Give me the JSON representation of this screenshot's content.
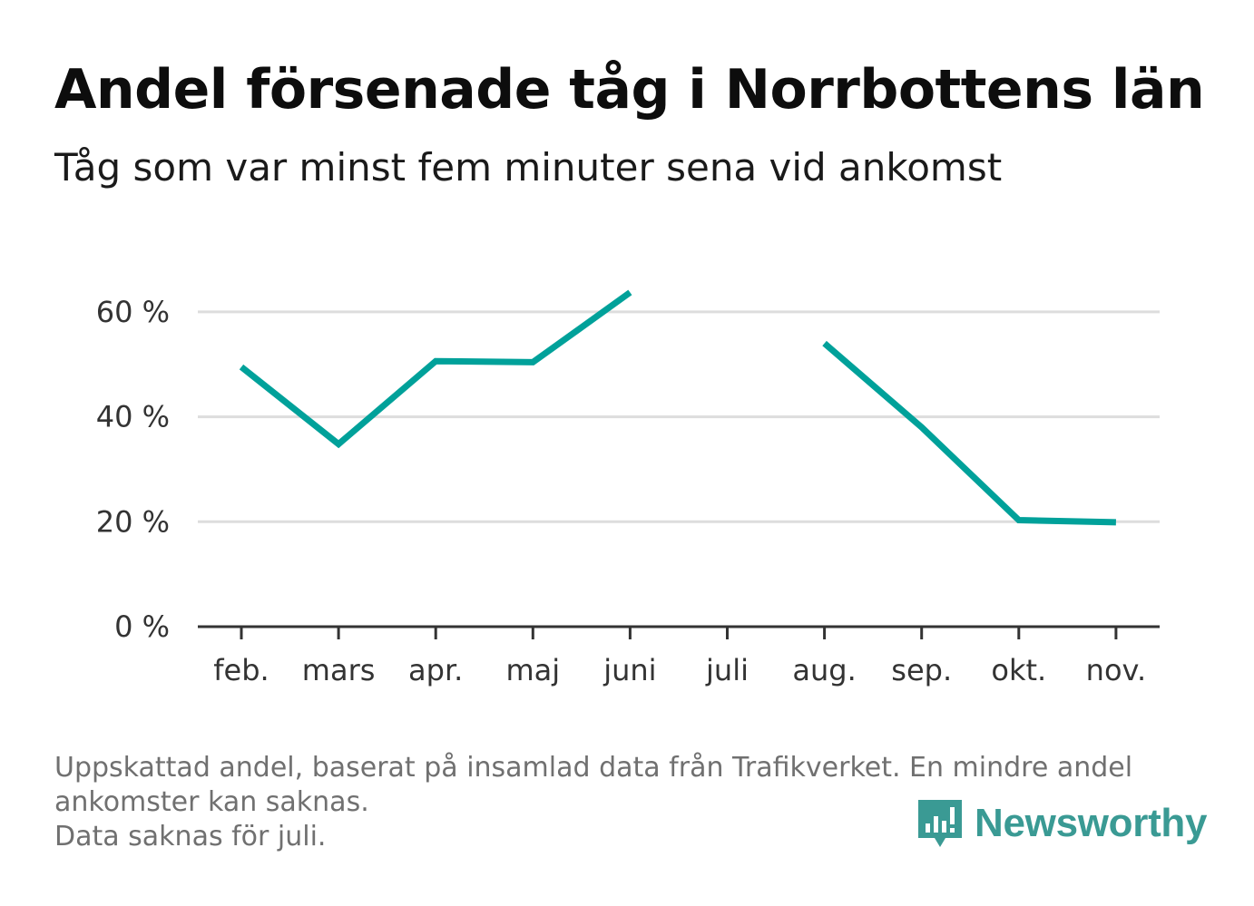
{
  "title": "Andel försenade tåg i Norrbottens län",
  "subtitle": "Tåg som var minst fem minuter sena vid ankomst",
  "footnote": {
    "line1": "Uppskattad andel, baserat på insamlad data från Trafikverket. En mindre andel",
    "line2": "ankomster kan saknas.",
    "line3": "Data saknas för juli."
  },
  "logo": {
    "text": "Newsworthy",
    "icon": "newsworthy-chart-bubble-icon",
    "color": "#3a9a94"
  },
  "chart_data": {
    "type": "line",
    "categories": [
      "feb.",
      "mars",
      "apr.",
      "maj",
      "juni",
      "juli",
      "aug.",
      "sep.",
      "okt.",
      "nov."
    ],
    "series": [
      {
        "values": [
          49.5,
          34.8,
          50.6,
          50.4,
          63.7,
          null,
          54.0,
          38.0,
          20.3,
          19.9
        ],
        "color": "#00a19a"
      }
    ],
    "ylim": [
      0,
      70
    ],
    "yticks": [
      0,
      20,
      40,
      60
    ],
    "ytick_labels": [
      "0 %",
      "20 %",
      "40 %",
      "60 %"
    ],
    "grid": true,
    "xlabel": "",
    "ylabel": ""
  }
}
